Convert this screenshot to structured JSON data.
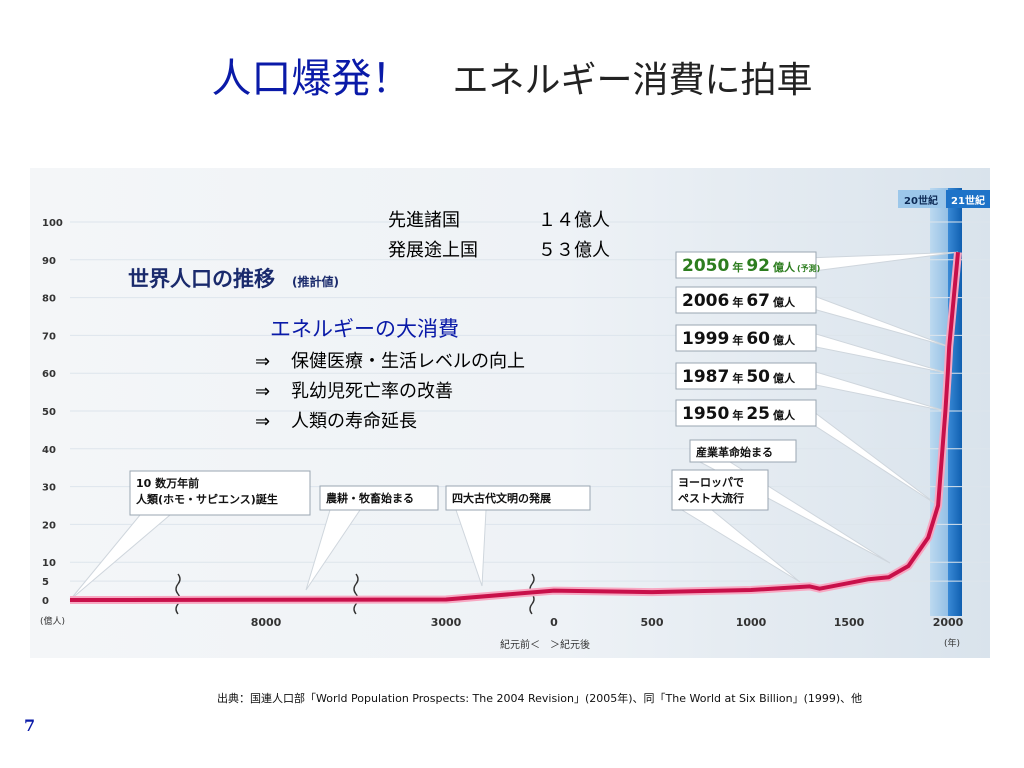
{
  "slide": {
    "title_main": "人口爆発！",
    "title_sub": "エネルギー消費に拍車",
    "page_number": "7",
    "source": "出典：国連人口部「World Population Prospects: The 2004 Revision」(2005年)、同「The World at Six Billion」(1999)、他"
  },
  "notes": {
    "developed_label": "先進諸国",
    "developed_value": "１４億人",
    "developing_label": "発展途上国",
    "developing_value": "５３億人",
    "energy_title": "エネルギーの大消費",
    "bullets": [
      {
        "arrow": "⇒",
        "text": "保健医療・生活レベルの向上"
      },
      {
        "arrow": "⇒",
        "text": "乳幼児死亡率の改善"
      },
      {
        "arrow": "⇒",
        "text": "人類の寿命延長"
      }
    ]
  },
  "chart_data": {
    "type": "line",
    "title": "世界人口の推移",
    "title_note": "(推計値)",
    "y_unit": "(億人)",
    "x_unit": "(年)",
    "x_axis_note": "紀元前＜　＞紀元後",
    "y_ticks": [
      "100",
      "90",
      "80",
      "70",
      "60",
      "50",
      "40",
      "30",
      "20",
      "10",
      "5",
      "0"
    ],
    "x_ticks": [
      "8000",
      "3000",
      "0",
      "500",
      "1000",
      "1500",
      "2000"
    ],
    "era_labels": [
      "20世紀",
      "21世紀"
    ],
    "series": [
      {
        "values_note": "x = year (negative = BC), y = population in 億人",
        "points": [
          [
            -300000,
            0.01
          ],
          [
            -8000,
            0.05
          ],
          [
            -3000,
            0.14
          ],
          [
            0,
            2.5
          ],
          [
            500,
            2.1
          ],
          [
            1000,
            2.65
          ],
          [
            1300,
            3.6
          ],
          [
            1350,
            3.0
          ],
          [
            1400,
            3.5
          ],
          [
            1600,
            5.5
          ],
          [
            1700,
            6.0
          ],
          [
            1800,
            9.0
          ],
          [
            1900,
            16.5
          ],
          [
            1950,
            25
          ],
          [
            1987,
            50
          ],
          [
            1999,
            60
          ],
          [
            2006,
            67
          ],
          [
            2050,
            92
          ]
        ]
      }
    ],
    "callouts": [
      {
        "year": "2050",
        "value": "92",
        "unit": "億人",
        "note": "(予測)"
      },
      {
        "year": "2006",
        "value": "67",
        "unit": "億人"
      },
      {
        "year": "1999",
        "value": "60",
        "unit": "億人"
      },
      {
        "year": "1987",
        "value": "50",
        "unit": "億人"
      },
      {
        "year": "1950",
        "value": "25",
        "unit": "億人"
      }
    ],
    "year_suffix": "年",
    "events": [
      {
        "line1": "10 数万年前",
        "line2": "人類(ホモ・サピエンス)誕生"
      },
      {
        "line1": "農耕・牧畜始まる"
      },
      {
        "line1": "四大古代文明の発展"
      },
      {
        "line1": "産業革命始まる"
      },
      {
        "line1": "ヨーロッパで",
        "line2": "ペスト大流行"
      }
    ],
    "colors": {
      "line": "#c8104a",
      "title": "#1a2a6c",
      "accent_2050": "#2d7d1f",
      "band_20c": "#7fb7e6",
      "band_21c": "#1e73c8",
      "panel_light": "#e6eef5"
    }
  }
}
